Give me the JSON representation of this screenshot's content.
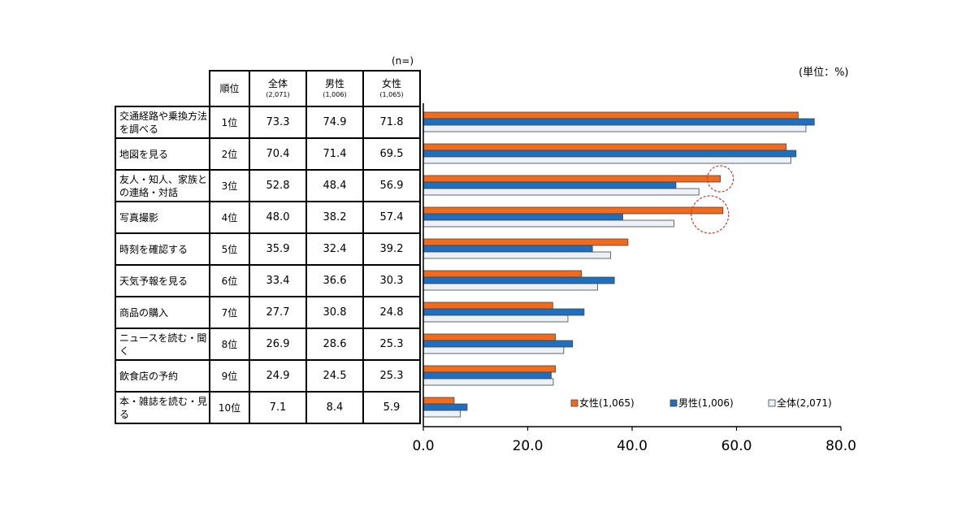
{
  "n_note": "(n=)",
  "unit_note": "(単位：%)",
  "table": {
    "headers": {
      "rank": "順位",
      "all": "全体",
      "all_n": "(2,071)",
      "male": "男性",
      "male_n": "(1,006)",
      "female": "女性",
      "female_n": "(1,065)"
    },
    "rows": [
      {
        "label": "交通経路や乗換方法を調べる",
        "rank": "1位",
        "all": "73.3",
        "male": "74.9",
        "female": "71.8"
      },
      {
        "label": "地図を見る",
        "rank": "2位",
        "all": "70.4",
        "male": "71.4",
        "female": "69.5"
      },
      {
        "label": "友人・知人、家族との連絡・対話",
        "rank": "3位",
        "all": "52.8",
        "male": "48.4",
        "female": "56.9"
      },
      {
        "label": "写真撮影",
        "rank": "4位",
        "all": "48.0",
        "male": "38.2",
        "female": "57.4"
      },
      {
        "label": "時刻を確認する",
        "rank": "5位",
        "all": "35.9",
        "male": "32.4",
        "female": "39.2"
      },
      {
        "label": "天気予報を見る",
        "rank": "6位",
        "all": "33.4",
        "male": "36.6",
        "female": "30.3"
      },
      {
        "label": "商品の購入",
        "rank": "7位",
        "all": "27.7",
        "male": "30.8",
        "female": "24.8"
      },
      {
        "label": "ニュースを読む・聞く",
        "rank": "8位",
        "all": "26.9",
        "male": "28.6",
        "female": "25.3"
      },
      {
        "label": "飲食店の予約",
        "rank": "9位",
        "all": "24.9",
        "male": "24.5",
        "female": "25.3"
      },
      {
        "label": "本・雑誌を読む・見る",
        "rank": "10位",
        "all": "7.1",
        "male": "8.4",
        "female": "5.9"
      }
    ]
  },
  "chart_data": {
    "type": "bar",
    "orientation": "horizontal",
    "categories": [
      "交通経路や乗換方法を調べる",
      "地図を見る",
      "友人・知人、家族との連絡・対話",
      "写真撮影",
      "時刻を確認する",
      "天気予報を見る",
      "商品の購入",
      "ニュースを読む・聞く",
      "飲食店の予約",
      "本・雑誌を読む・見る"
    ],
    "series": [
      {
        "name": "女性(1,065)",
        "color": "#f26b1d",
        "values": [
          71.8,
          69.5,
          56.9,
          57.4,
          39.2,
          30.3,
          24.8,
          25.3,
          25.3,
          5.9
        ]
      },
      {
        "name": "男性(1,006)",
        "color": "#1f6fc0",
        "values": [
          74.9,
          71.4,
          48.4,
          38.2,
          32.4,
          36.6,
          30.8,
          28.6,
          24.5,
          8.4
        ]
      },
      {
        "name": "全体(2,071)",
        "color": "#ecf1f8",
        "values": [
          73.3,
          70.4,
          52.8,
          48.0,
          35.9,
          33.4,
          27.7,
          26.9,
          24.9,
          7.1
        ]
      }
    ],
    "xlim": [
      0,
      80
    ],
    "xticks": [
      "0.0",
      "20.0",
      "40.0",
      "60.0",
      "80.0"
    ],
    "xtick_values": [
      0,
      20,
      40,
      60,
      80
    ],
    "legend_placement": "bottom-right",
    "highlight_circles": [
      2,
      3
    ],
    "highlight_color": "#e03030"
  }
}
